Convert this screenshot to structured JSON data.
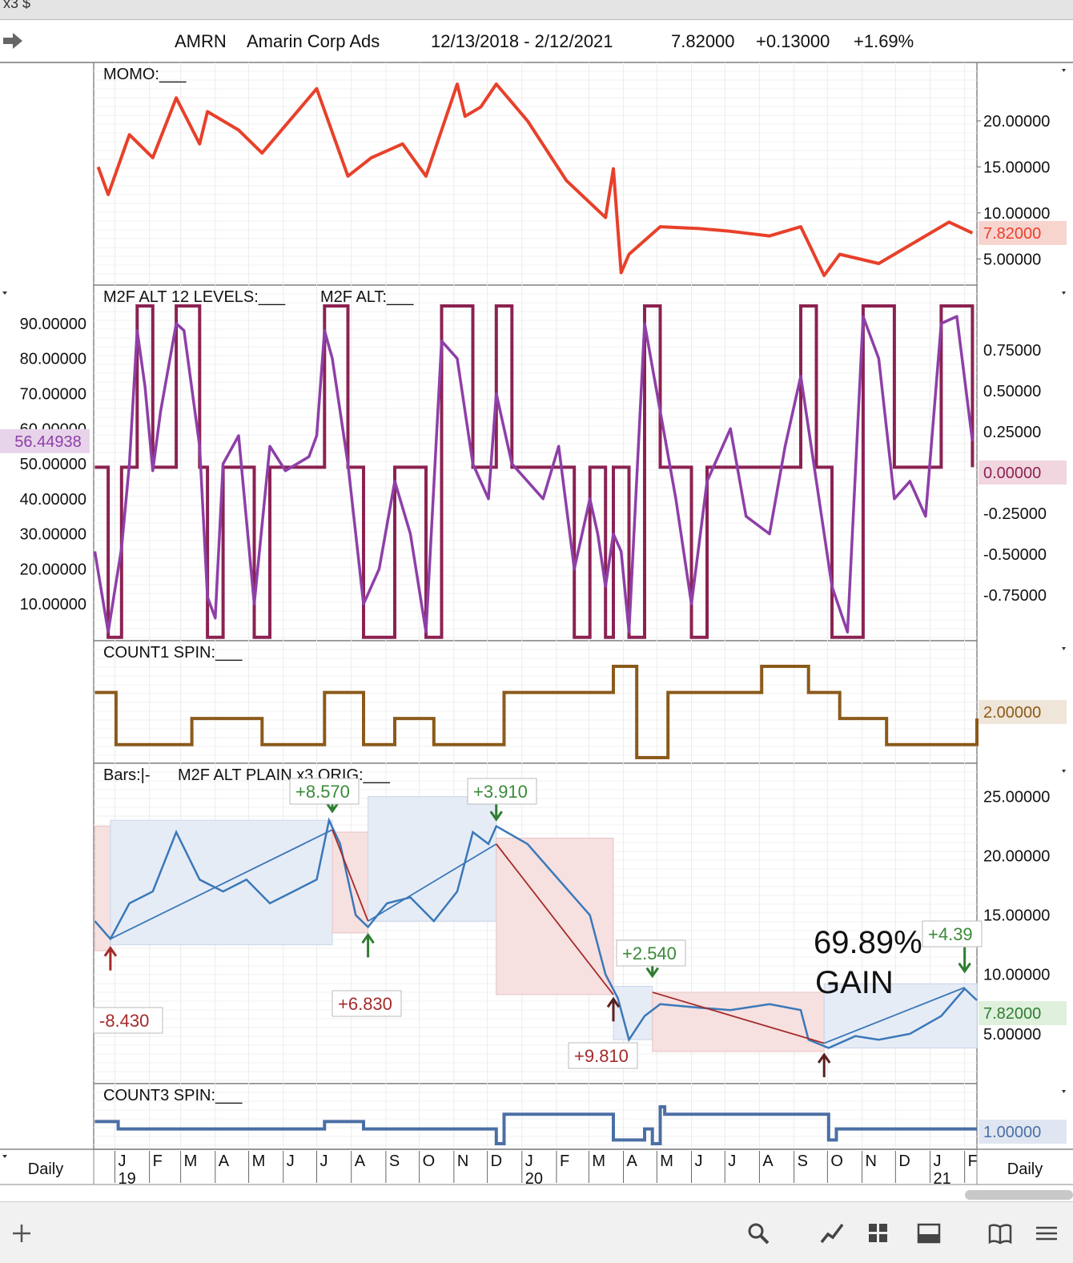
{
  "top_strip_text": "x3 $",
  "header": {
    "symbol": "AMRN",
    "name": "Amarin Corp Ads",
    "date_range": "12/13/2018 - 2/12/2021",
    "price": "7.82000",
    "change": "+0.13000",
    "change_pct": "+1.69%"
  },
  "period_left": "Daily",
  "period_right": "Daily",
  "colors": {
    "momo": "#e8402a",
    "m2f_levels": "#8b2252",
    "m2f_alt": "#8e3fa8",
    "count1": "#8b5a1a",
    "count3": "#4a6fa5",
    "up_bar": "#3a78b8",
    "down_bar": "#a52a2a",
    "gain_text": "#3a8a3a",
    "loss_text": "#a52a2a"
  },
  "icons": [
    "forward-arrow-icon",
    "plus-icon",
    "search-icon",
    "line-chart-icon",
    "grid-icon",
    "panel-icon",
    "book-icon",
    "menu-icon"
  ],
  "chart_data": [
    {
      "type": "line",
      "label": "MOMO:___",
      "last_value_label": "7.82000",
      "ylim": [
        2.5,
        26
      ],
      "yticks": [
        "5.00000",
        "10.00000",
        "15.00000",
        "20.00000"
      ],
      "x": [
        "2018-12-17",
        "2018-12-26",
        "2019-01-14",
        "2019-02-04",
        "2019-02-25",
        "2019-03-18",
        "2019-03-25",
        "2019-04-22",
        "2019-05-13",
        "2019-06-03",
        "2019-07-01",
        "2019-07-29",
        "2019-08-19",
        "2019-09-16",
        "2019-10-07",
        "2019-11-04",
        "2019-11-11",
        "2019-11-25",
        "2019-12-09",
        "2020-01-06",
        "2020-02-10",
        "2020-03-16",
        "2020-03-23",
        "2020-03-30",
        "2020-04-06",
        "2020-05-04",
        "2020-06-08",
        "2020-07-06",
        "2020-08-10",
        "2020-09-07",
        "2020-09-28",
        "2020-10-12",
        "2020-11-16",
        "2020-12-14",
        "2021-01-18",
        "2021-02-08"
      ],
      "y": [
        15,
        12,
        18.5,
        16,
        22.5,
        17.5,
        21,
        19,
        16.5,
        19.5,
        23.5,
        14,
        16,
        17.5,
        14,
        24,
        20.5,
        21.5,
        24,
        20,
        13.5,
        9.5,
        14.8,
        3.5,
        5.5,
        8.5,
        8.3,
        8.0,
        7.5,
        8.5,
        3.2,
        5.5,
        4.5,
        6.5,
        9.0,
        7.82
      ]
    },
    {
      "type": "line",
      "label_levels": "M2F ALT 12 LEVELS:___",
      "label_alt": "M2F ALT:___",
      "last_value_label_left": "56.44938",
      "last_value_label_right": "0.00000",
      "ylim_left": [
        0,
        95
      ],
      "yticks_left": [
        "10.00000",
        "20.00000",
        "30.00000",
        "40.00000",
        "50.00000",
        "60.00000",
        "70.00000",
        "80.00000",
        "90.00000"
      ],
      "yticks_right": [
        "-0.75000",
        "-0.50000",
        "-0.25000",
        "0.00000",
        "0.25000",
        "0.50000",
        "0.75000"
      ],
      "series": [
        {
          "x": [
            "2018-12-14",
            "2018-12-26",
            "2019-01-07",
            "2019-01-14",
            "2019-01-21",
            "2019-01-28",
            "2019-02-04",
            "2019-02-11",
            "2019-02-25",
            "2019-03-04",
            "2019-03-18",
            "2019-03-25",
            "2019-04-01",
            "2019-04-08",
            "2019-04-22",
            "2019-05-06",
            "2019-05-20",
            "2019-06-03",
            "2019-06-24",
            "2019-07-01",
            "2019-07-08",
            "2019-07-15",
            "2019-07-29",
            "2019-08-12",
            "2019-08-26",
            "2019-09-09",
            "2019-09-23",
            "2019-10-07",
            "2019-10-21",
            "2019-11-04",
            "2019-11-18",
            "2019-12-02",
            "2019-12-09",
            "2019-12-23",
            "2020-01-06",
            "2020-01-20",
            "2020-02-03",
            "2020-02-17",
            "2020-03-02",
            "2020-03-09",
            "2020-03-16",
            "2020-03-23",
            "2020-03-30",
            "2020-04-06",
            "2020-04-20",
            "2020-05-04",
            "2020-05-18",
            "2020-06-01",
            "2020-06-15",
            "2020-07-06",
            "2020-07-20",
            "2020-08-10",
            "2020-08-24",
            "2020-09-07",
            "2020-09-21",
            "2020-10-05",
            "2020-10-19",
            "2020-11-02",
            "2020-11-16",
            "2020-11-30",
            "2020-12-14",
            "2020-12-28",
            "2021-01-11",
            "2021-01-25",
            "2021-02-08"
          ],
          "y": [
            25,
            2,
            26,
            50,
            88,
            72,
            48,
            65,
            90,
            88,
            55,
            12,
            6,
            50,
            58,
            10,
            55,
            48,
            52,
            58,
            88,
            80,
            50,
            10,
            20,
            45,
            30,
            2,
            85,
            80,
            50,
            40,
            70,
            50,
            45,
            40,
            55,
            20,
            40,
            30,
            15,
            30,
            25,
            2,
            90,
            65,
            40,
            10,
            45,
            60,
            35,
            30,
            55,
            75,
            45,
            15,
            2,
            92,
            80,
            40,
            45,
            35,
            90,
            92,
            56.45
          ]
        }
      ]
    },
    {
      "type": "line",
      "label": "COUNT1 SPIN:___",
      "last_value_label": "2.00000",
      "x": [
        "2018-12-14",
        "2018-12-26",
        "2019-01-02",
        "2019-03-04",
        "2019-03-11",
        "2019-05-06",
        "2019-05-13",
        "2019-07-01",
        "2019-07-08",
        "2019-08-05",
        "2019-08-12",
        "2019-09-02",
        "2019-09-09",
        "2019-10-07",
        "2019-10-14",
        "2019-12-09",
        "2019-12-16",
        "2020-03-16",
        "2020-03-23",
        "2020-04-06",
        "2020-04-13",
        "2020-05-04",
        "2020-05-11",
        "2020-07-27",
        "2020-08-03",
        "2020-09-07",
        "2020-09-14",
        "2020-10-05",
        "2020-10-12",
        "2020-11-16",
        "2020-11-23",
        "2021-02-01",
        "2021-02-12"
      ],
      "y": [
        3,
        3,
        1,
        1,
        2,
        2,
        1,
        1,
        3,
        3,
        1,
        1,
        2,
        2,
        1,
        1,
        3,
        3,
        4,
        4,
        0.5,
        0.5,
        3,
        3,
        4,
        4,
        3,
        3,
        2,
        2,
        1,
        1,
        2
      ]
    },
    {
      "type": "line",
      "label": "Bars:|-",
      "label2": "M2F ALT PLAIN x3 ORIG:___",
      "last_value_label": "7.82000",
      "annotation_gain": "69.89%",
      "annotation_gain_word": "GAIN",
      "yticks": [
        "5.00000",
        "10.00000",
        "15.00000",
        "20.00000",
        "25.00000"
      ],
      "ylim": [
        1,
        27
      ],
      "trade_labels": [
        {
          "text": "-8.430",
          "date": "2018-12-14",
          "price": 5.5,
          "kind": "loss"
        },
        {
          "text": "+6.830",
          "date": "2019-08-05",
          "price": 7,
          "kind": "loss"
        },
        {
          "text": "+9.810",
          "date": "2020-03-30",
          "price": 3.2,
          "kind": "loss"
        },
        {
          "text": "+2.540",
          "date": "2020-04-20",
          "price": 13,
          "kind": "gain"
        },
        {
          "text": "+4.39",
          "date": "2021-01-25",
          "price": 14.7,
          "kind": "gain"
        },
        {
          "text": "+8.570",
          "date": "2019-07-15",
          "price": 26.5,
          "kind": "gain"
        },
        {
          "text": "+3.910",
          "date": "2019-11-25",
          "price": 26.5,
          "kind": "gain"
        }
      ],
      "price_x": [
        "2018-12-14",
        "2018-12-28",
        "2019-01-14",
        "2019-02-04",
        "2019-02-25",
        "2019-03-18",
        "2019-04-08",
        "2019-04-29",
        "2019-05-20",
        "2019-06-10",
        "2019-07-01",
        "2019-07-12",
        "2019-07-22",
        "2019-08-05",
        "2019-08-16",
        "2019-09-02",
        "2019-09-23",
        "2019-10-14",
        "2019-11-04",
        "2019-11-18",
        "2019-12-02",
        "2019-12-09",
        "2020-01-06",
        "2020-02-03",
        "2020-03-02",
        "2020-03-16",
        "2020-03-27",
        "2020-04-06",
        "2020-04-20",
        "2020-05-04",
        "2020-06-08",
        "2020-07-06",
        "2020-08-10",
        "2020-09-07",
        "2020-09-14",
        "2020-10-02",
        "2020-10-26",
        "2020-11-16",
        "2020-12-14",
        "2021-01-11",
        "2021-02-01",
        "2021-02-12"
      ],
      "price_y": [
        14.5,
        13,
        16,
        17,
        22,
        18,
        17,
        18,
        16,
        17,
        18,
        23,
        21,
        15,
        14,
        16,
        16.5,
        14.5,
        17,
        22,
        21,
        22.5,
        21,
        18,
        15,
        10,
        8,
        4.5,
        6.5,
        7.5,
        7.2,
        7.0,
        7.5,
        7.0,
        4.5,
        3.8,
        4.8,
        4.5,
        5.0,
        6.5,
        8.8,
        7.82
      ]
    },
    {
      "type": "line",
      "label": "COUNT3 SPIN:___",
      "last_value_label": "1.00000",
      "x": [
        "2018-12-14",
        "2018-12-28",
        "2019-01-04",
        "2019-07-01",
        "2019-07-08",
        "2019-08-05",
        "2019-08-12",
        "2019-12-05",
        "2019-12-09",
        "2019-12-16",
        "2020-03-16",
        "2020-03-23",
        "2020-04-13",
        "2020-04-20",
        "2020-04-27",
        "2020-05-04",
        "2020-05-08",
        "2020-09-28",
        "2020-10-02",
        "2020-10-09",
        "2021-02-12"
      ],
      "y": [
        2,
        2,
        1,
        1,
        2,
        2,
        1,
        1,
        -1,
        3,
        3,
        -0.5,
        -0.5,
        1,
        -1,
        4,
        3,
        3,
        -0.5,
        1,
        1
      ]
    }
  ],
  "time_axis": {
    "months": [
      "J",
      "F",
      "M",
      "A",
      "M",
      "J",
      "J",
      "A",
      "S",
      "O",
      "N",
      "D",
      "J",
      "F",
      "M",
      "A",
      "M",
      "J",
      "J",
      "A",
      "S",
      "O",
      "N",
      "D",
      "J",
      "F"
    ],
    "years": [
      "19",
      "20",
      "21"
    ]
  }
}
